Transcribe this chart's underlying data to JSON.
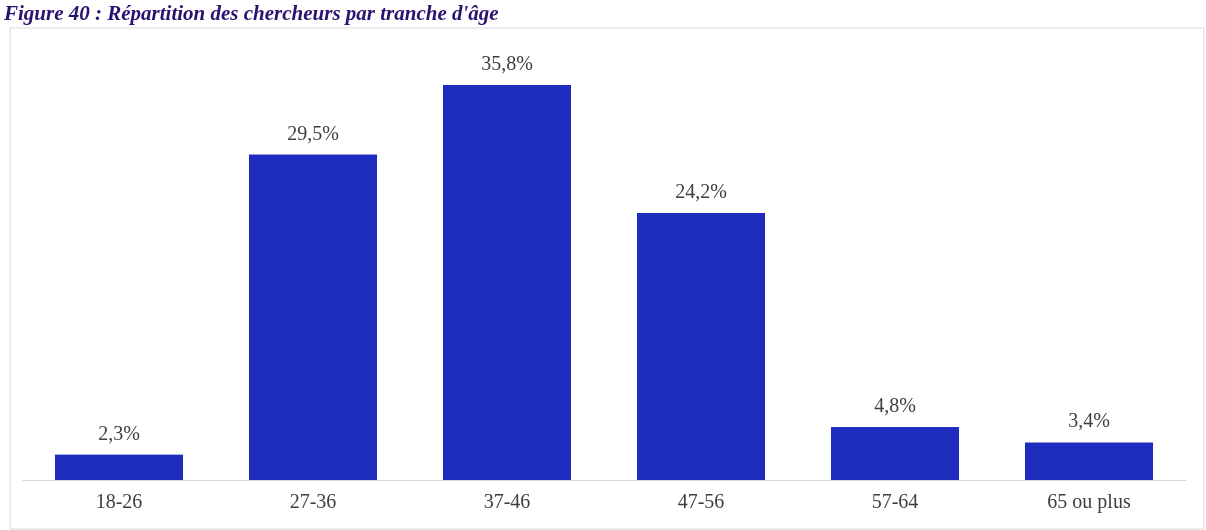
{
  "chart_data": {
    "type": "bar",
    "title": "Figure 40 : Répartition des chercheurs par tranche d'âge",
    "categories": [
      "18-26",
      "27-36",
      "37-46",
      "47-56",
      "57-64",
      "65 ou plus"
    ],
    "values": [
      2.3,
      29.5,
      35.8,
      24.2,
      4.8,
      3.4
    ],
    "value_labels": [
      "2,3%",
      "29,5%",
      "35,8%",
      "24,2%",
      "4,8%",
      "3,4%"
    ],
    "color": "#1f2dbf"
  }
}
